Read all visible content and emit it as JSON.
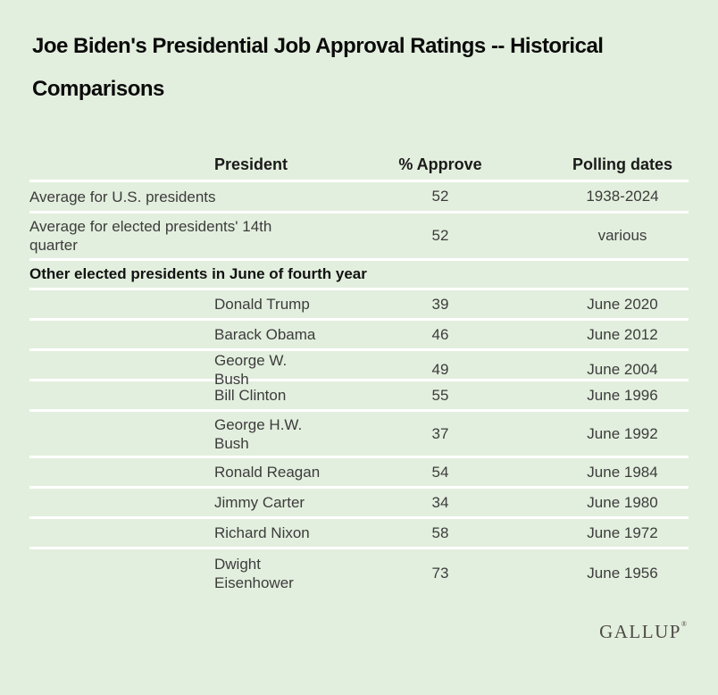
{
  "title": "Joe Biden's Presidential Job Approval Ratings -- Historical\nComparisons",
  "table": {
    "columns": [
      "President",
      "% Approve",
      "Polling dates"
    ],
    "summary_rows": [
      {
        "label": "Average for U.S. presidents",
        "approve": "52",
        "dates": "1938-2024"
      },
      {
        "label": "Average for elected presidents' 14th\nquarter",
        "approve": "52",
        "dates": "various"
      }
    ],
    "section_header": "Other elected presidents in June of fourth year",
    "rows": [
      {
        "president": "Donald Trump",
        "approve": "39",
        "dates": "June 2020"
      },
      {
        "president": "Barack Obama",
        "approve": "46",
        "dates": "June 2012"
      },
      {
        "president": "George W. Bush",
        "approve": "49",
        "dates": "June 2004"
      },
      {
        "president": "Bill Clinton",
        "approve": "55",
        "dates": "June 1996"
      },
      {
        "president": "George H.W.\nBush",
        "approve": "37",
        "dates": "June 1992"
      },
      {
        "president": "Ronald Reagan",
        "approve": "54",
        "dates": "June 1984"
      },
      {
        "president": "Jimmy Carter",
        "approve": "34",
        "dates": "June 1980"
      },
      {
        "president": "Richard Nixon",
        "approve": "58",
        "dates": "June 1972"
      },
      {
        "president": "Dwight\nEisenhower",
        "approve": "73",
        "dates": "June 1956"
      }
    ]
  },
  "footer": {
    "logo": "GALLUP",
    "registered_mark": "®"
  },
  "colors": {
    "background": "#E3EFDE",
    "separator_line": "#FFFFFF",
    "title_text": "#0B0B0B",
    "body_text": "#3C3C3C",
    "header_text": "#1A1A1A",
    "logo_text": "#4D4B47"
  },
  "chart_data": {
    "type": "table",
    "title": "Joe Biden's Presidential Job Approval Ratings -- Historical Comparisons",
    "columns": [
      "President",
      "% Approve",
      "Polling dates"
    ],
    "rows": [
      [
        "Average for U.S. presidents",
        52,
        "1938-2024"
      ],
      [
        "Average for elected presidents' 14th quarter",
        52,
        "various"
      ],
      [
        "Donald Trump",
        39,
        "June 2020"
      ],
      [
        "Barack Obama",
        46,
        "June 2012"
      ],
      [
        "George W. Bush",
        49,
        "June 2004"
      ],
      [
        "Bill Clinton",
        55,
        "June 1996"
      ],
      [
        "George H.W. Bush",
        37,
        "June 1992"
      ],
      [
        "Ronald Reagan",
        54,
        "June 1984"
      ],
      [
        "Jimmy Carter",
        34,
        "June 1980"
      ],
      [
        "Richard Nixon",
        58,
        "June 1972"
      ],
      [
        "Dwight Eisenhower",
        73,
        "June 1956"
      ]
    ],
    "section_label": "Other elected presidents in June of fourth year",
    "source_logo": "GALLUP"
  }
}
